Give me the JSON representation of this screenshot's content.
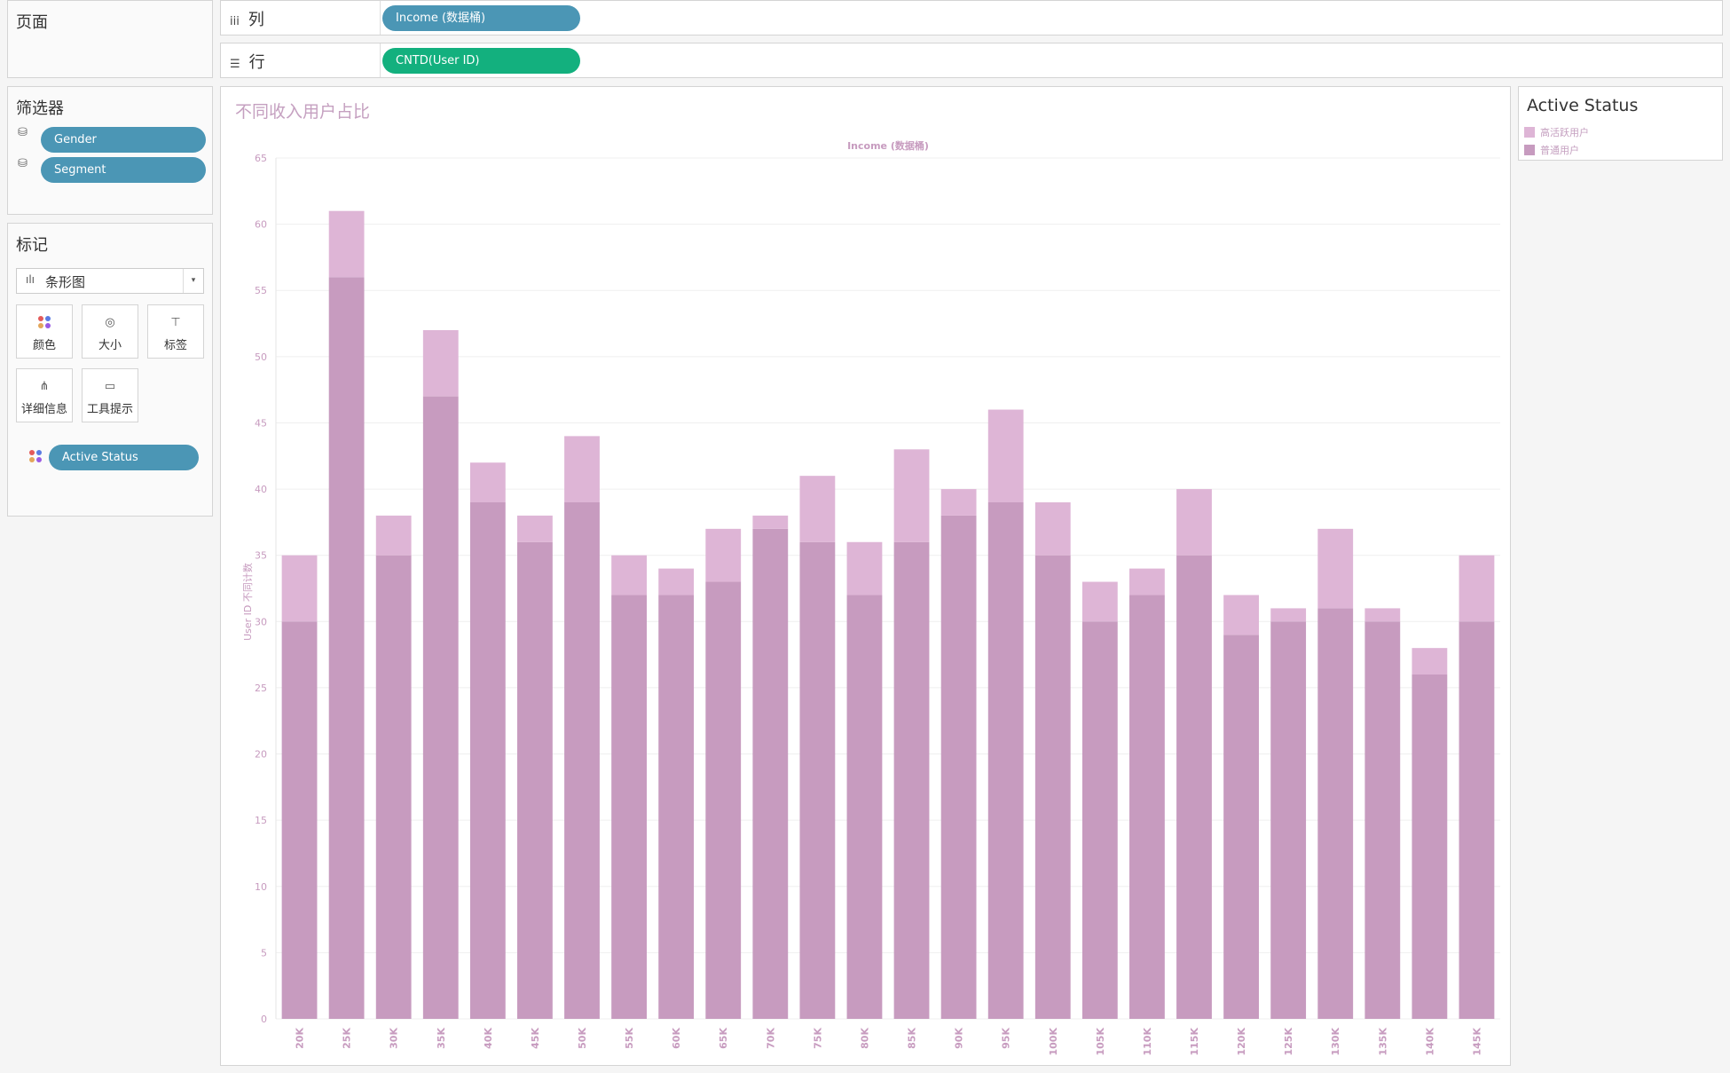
{
  "pages_panel": {
    "title": "页面"
  },
  "columns_shelf": {
    "icon": "iii",
    "label": "列",
    "pill": "Income (数据桶)"
  },
  "rows_shelf": {
    "icon": "☰",
    "label": "行",
    "pill": "CNTD(User ID)"
  },
  "filters_panel": {
    "title": "筛选器",
    "items": [
      "Gender",
      "Segment"
    ]
  },
  "marks_panel": {
    "title": "标记",
    "mark_type": "条形图",
    "buttons": {
      "color": "颜色",
      "size": "大小",
      "label": "标签",
      "detail": "详细信息",
      "tooltip": "工具提示"
    },
    "field_pill": "Active Status"
  },
  "legend": {
    "title": "Active Status",
    "items": [
      {
        "label": "高活跃用户",
        "color": "#deb5d6"
      },
      {
        "label": "普通用户",
        "color": "#c79bbf"
      }
    ]
  },
  "colors": {
    "blue_pill": "#4b96b5",
    "green_pill": "#13b07e",
    "high_active": "#deb5d6",
    "normal": "#c79bbf"
  },
  "chart_data": {
    "type": "bar",
    "stacked": true,
    "title": "不同收入用户占比",
    "xlabel": "Income (数据桶)",
    "ylabel": "User ID 不同计数",
    "ylim": [
      0,
      65
    ],
    "yticks": [
      0,
      5,
      10,
      15,
      20,
      25,
      30,
      35,
      40,
      45,
      50,
      55,
      60,
      65
    ],
    "grid": true,
    "categories": [
      "20K",
      "25K",
      "30K",
      "35K",
      "40K",
      "45K",
      "50K",
      "55K",
      "60K",
      "65K",
      "70K",
      "75K",
      "80K",
      "85K",
      "90K",
      "95K",
      "100K",
      "105K",
      "110K",
      "115K",
      "120K",
      "125K",
      "130K",
      "135K",
      "140K",
      "145K"
    ],
    "series": [
      {
        "name": "普通用户",
        "color": "#c79bbf",
        "values": [
          30,
          56,
          35,
          47,
          39,
          36,
          39,
          32,
          32,
          33,
          37,
          36,
          32,
          36,
          38,
          39,
          35,
          30,
          32,
          35,
          29,
          30,
          31,
          30,
          26,
          30
        ]
      },
      {
        "name": "高活跃用户",
        "color": "#deb5d6",
        "values": [
          5,
          5,
          3,
          5,
          3,
          2,
          5,
          3,
          2,
          4,
          1,
          5,
          4,
          7,
          2,
          7,
          4,
          3,
          2,
          5,
          3,
          1,
          6,
          1,
          2,
          5
        ]
      }
    ]
  }
}
